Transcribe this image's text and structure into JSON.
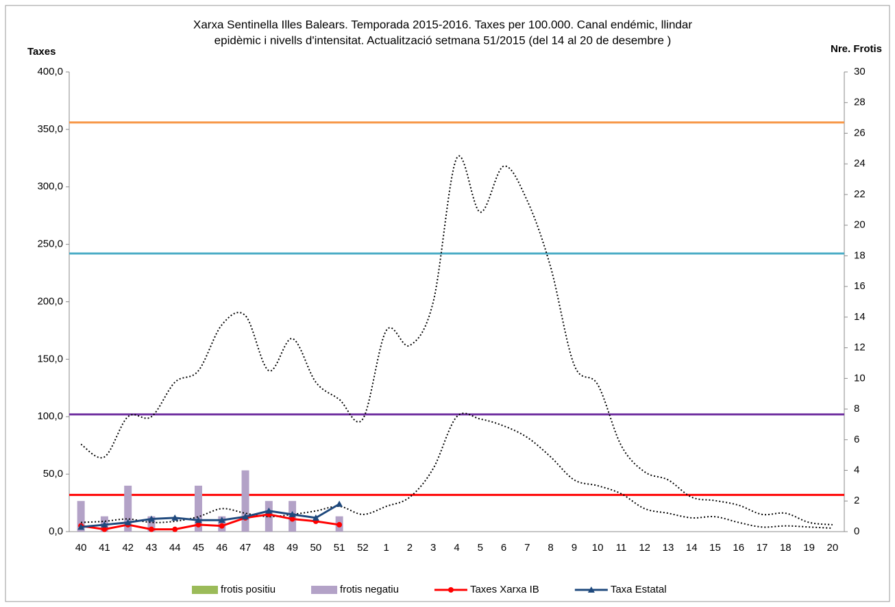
{
  "chart_data": {
    "type": "combo",
    "title": [
      "Xarxa Sentinella Illes Balears.  Temporada 2015-2016.  Taxes  per 100.000.  Canal  endémic, llindar",
      "epidèmic i nivells d'intensitat.  Actualització setmana  51/2015 (del  14  al  20 de desembre )"
    ],
    "y_label": "Taxes",
    "y2_label": "Nre. Frotis",
    "categories": [
      "40",
      "41",
      "42",
      "43",
      "44",
      "45",
      "46",
      "47",
      "48",
      "49",
      "50",
      "51",
      "52",
      "1",
      "2",
      "3",
      "4",
      "5",
      "6",
      "7",
      "8",
      "9",
      "10",
      "11",
      "12",
      "13",
      "14",
      "15",
      "16",
      "17",
      "18",
      "19",
      "20"
    ],
    "ylim": [
      0,
      400
    ],
    "yticks": [
      {
        "value": 0,
        "label": "0,0"
      },
      {
        "value": 50,
        "label": "50,0"
      },
      {
        "value": 100,
        "label": "100,0"
      },
      {
        "value": 150,
        "label": "150,0"
      },
      {
        "value": 200,
        "label": "200,0"
      },
      {
        "value": 250,
        "label": "250,0"
      },
      {
        "value": 300,
        "label": "300,0"
      },
      {
        "value": 350,
        "label": "350,0"
      },
      {
        "value": 400,
        "label": "400,0"
      }
    ],
    "y2lim": [
      0,
      30
    ],
    "y2ticks": [
      0,
      2,
      4,
      6,
      8,
      10,
      12,
      14,
      16,
      18,
      20,
      22,
      24,
      26,
      28,
      30
    ],
    "series": [
      {
        "name": "frotis positiu",
        "kind": "bar",
        "axis": "y2",
        "color": "#9bbb59",
        "values": [
          0,
          0,
          0,
          0,
          0,
          0,
          0,
          0,
          0,
          0,
          0,
          0,
          null,
          null,
          null,
          null,
          null,
          null,
          null,
          null,
          null,
          null,
          null,
          null,
          null,
          null,
          null,
          null,
          null,
          null,
          null,
          null,
          null
        ]
      },
      {
        "name": "frotis negatiu",
        "kind": "bar",
        "axis": "y2",
        "color": "#b3a2c7",
        "values": [
          2,
          1,
          3,
          1,
          0,
          3,
          1,
          4,
          2,
          2,
          0,
          1,
          null,
          null,
          null,
          null,
          null,
          null,
          null,
          null,
          null,
          null,
          null,
          null,
          null,
          null,
          null,
          null,
          null,
          null,
          null,
          null,
          null
        ]
      },
      {
        "name": "Taxes Xarxa IB",
        "kind": "line",
        "marker": "circle",
        "color": "#ff0000",
        "values": [
          5,
          2,
          6,
          2,
          2,
          6,
          5,
          12,
          15,
          11,
          9,
          6,
          null,
          null,
          null,
          null,
          null,
          null,
          null,
          null,
          null,
          null,
          null,
          null,
          null,
          null,
          null,
          null,
          null,
          null,
          null,
          null,
          null
        ]
      },
      {
        "name": "Taxa Estatal",
        "kind": "line",
        "marker": "triangle",
        "color": "#1f497d",
        "values": [
          4,
          6,
          8,
          11,
          12,
          10,
          10,
          13,
          18,
          15,
          12,
          24,
          null,
          null,
          null,
          null,
          null,
          null,
          null,
          null,
          null,
          null,
          null,
          null,
          null,
          null,
          null,
          null,
          null,
          null,
          null,
          null,
          null
        ]
      },
      {
        "kind": "dotted",
        "color": "#000000",
        "values": [
          76,
          65,
          100,
          100,
          130,
          140,
          180,
          188,
          140,
          168,
          130,
          115,
          98,
          175,
          162,
          200,
          325,
          278,
          318,
          288,
          230,
          145,
          128,
          75,
          52,
          45,
          30,
          27,
          23,
          15,
          16,
          8,
          6
        ]
      },
      {
        "kind": "dotted",
        "color": "#000000",
        "values": [
          8,
          9,
          11,
          8,
          9,
          13,
          20,
          16,
          13,
          15,
          18,
          22,
          15,
          22,
          30,
          55,
          100,
          98,
          92,
          82,
          65,
          45,
          40,
          33,
          20,
          16,
          12,
          13,
          8,
          4,
          5,
          4,
          3
        ]
      }
    ],
    "thresholds": [
      {
        "value": 32,
        "color": "#ff0000"
      },
      {
        "value": 102,
        "color": "#7030a0"
      },
      {
        "value": 242,
        "color": "#4bacc6"
      },
      {
        "value": 356,
        "color": "#f79646"
      }
    ]
  }
}
